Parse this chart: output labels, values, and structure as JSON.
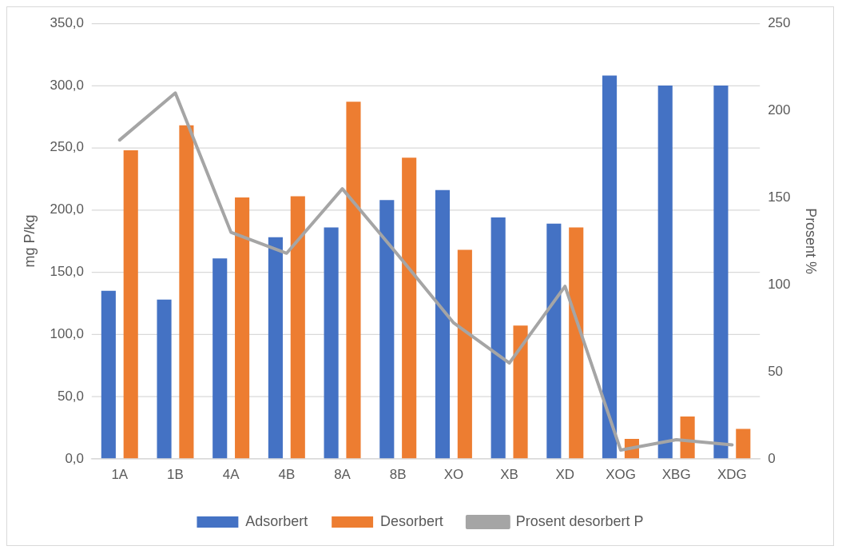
{
  "chart_data": {
    "type": "bar",
    "ylabel": "mg P/kg",
    "y2label": "Prosent %",
    "categories": [
      "1A",
      "1B",
      "4A",
      "4B",
      "8A",
      "8B",
      "XO",
      "XB",
      "XD",
      "XOG",
      "XBG",
      "XDG"
    ],
    "series": [
      {
        "name": "Adsorbert",
        "color": "#4472c4",
        "values": [
          135,
          128,
          161,
          178,
          186,
          208,
          216,
          194,
          189,
          308,
          300,
          300
        ]
      },
      {
        "name": "Desorbert",
        "color": "#ed7d31",
        "values": [
          248,
          268,
          210,
          211,
          287,
          242,
          168,
          107,
          186,
          16,
          34,
          24
        ]
      },
      {
        "name": "Prosent desorbert P",
        "type": "line",
        "axis": "y2",
        "color": "#a5a5a5",
        "marker": "none",
        "values": [
          183,
          210,
          130,
          118,
          155,
          117,
          78,
          55,
          99,
          5,
          11,
          8
        ]
      }
    ],
    "ylim": [
      0,
      350
    ],
    "yticks": [
      {
        "value": 0,
        "label": "0,0"
      },
      {
        "value": 50,
        "label": "50,0"
      },
      {
        "value": 100,
        "label": "100,0"
      },
      {
        "value": 150,
        "label": "150,0"
      },
      {
        "value": 200,
        "label": "200,0"
      },
      {
        "value": 250,
        "label": "250,0"
      },
      {
        "value": 300,
        "label": "300,0"
      },
      {
        "value": 350,
        "label": "350,0"
      }
    ],
    "y2lim": [
      0,
      250
    ],
    "y2ticks": [
      0,
      50,
      100,
      150,
      200,
      250
    ],
    "grid": "y",
    "legend": "bottom"
  }
}
